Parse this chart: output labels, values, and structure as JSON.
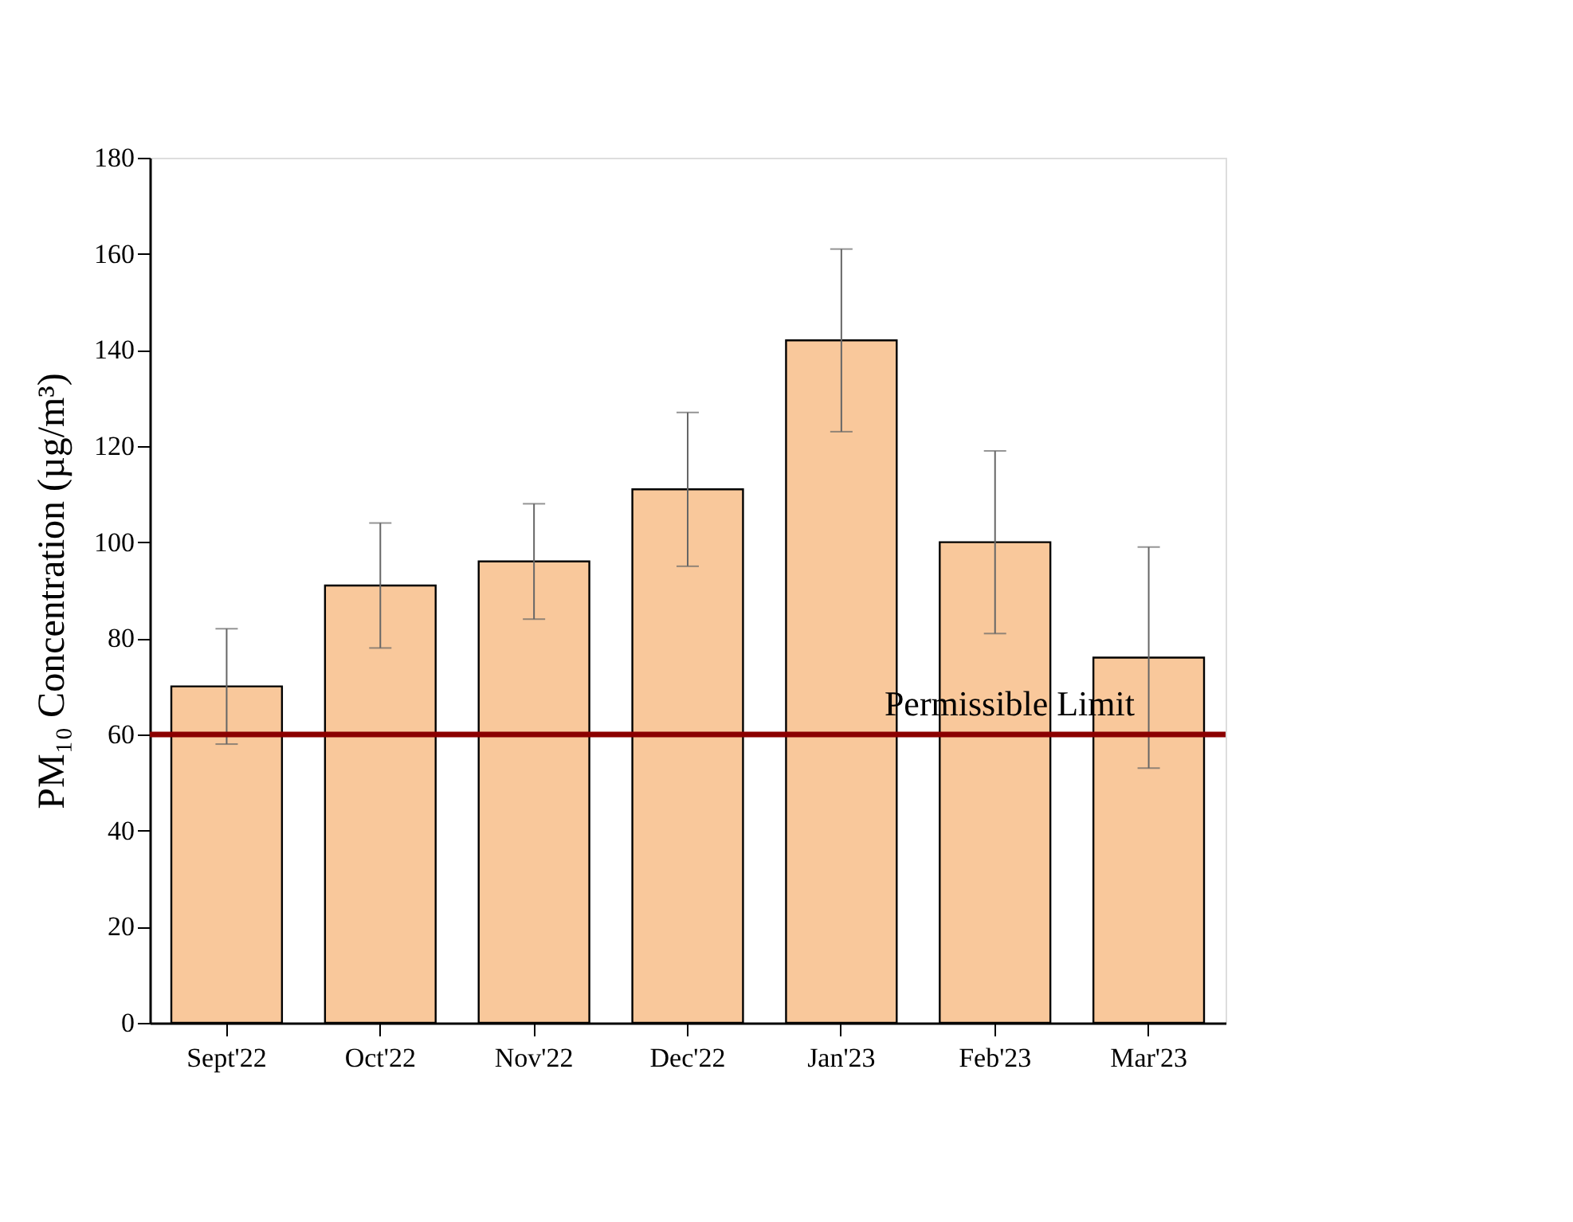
{
  "chart_data": {
    "type": "bar",
    "ylabel": "PM₁₀ Concentration (µg/m³)",
    "categories": [
      "Sept'22",
      "Oct'22",
      "Nov'22",
      "Dec'22",
      "Jan'23",
      "Feb'23",
      "Mar'23"
    ],
    "values": [
      70,
      91,
      96,
      111,
      142,
      100,
      76
    ],
    "errors": [
      12,
      13,
      12,
      16,
      19,
      19,
      23
    ],
    "color": "#f9c89b",
    "ylim": [
      0,
      180
    ],
    "yticks": [
      0,
      20,
      40,
      60,
      80,
      100,
      120,
      140,
      160,
      180
    ],
    "ref_lines": [
      {
        "axis": "y",
        "value": 60,
        "label": "Permissible Limit",
        "color": "#8b0000"
      }
    ],
    "grid": false
  }
}
